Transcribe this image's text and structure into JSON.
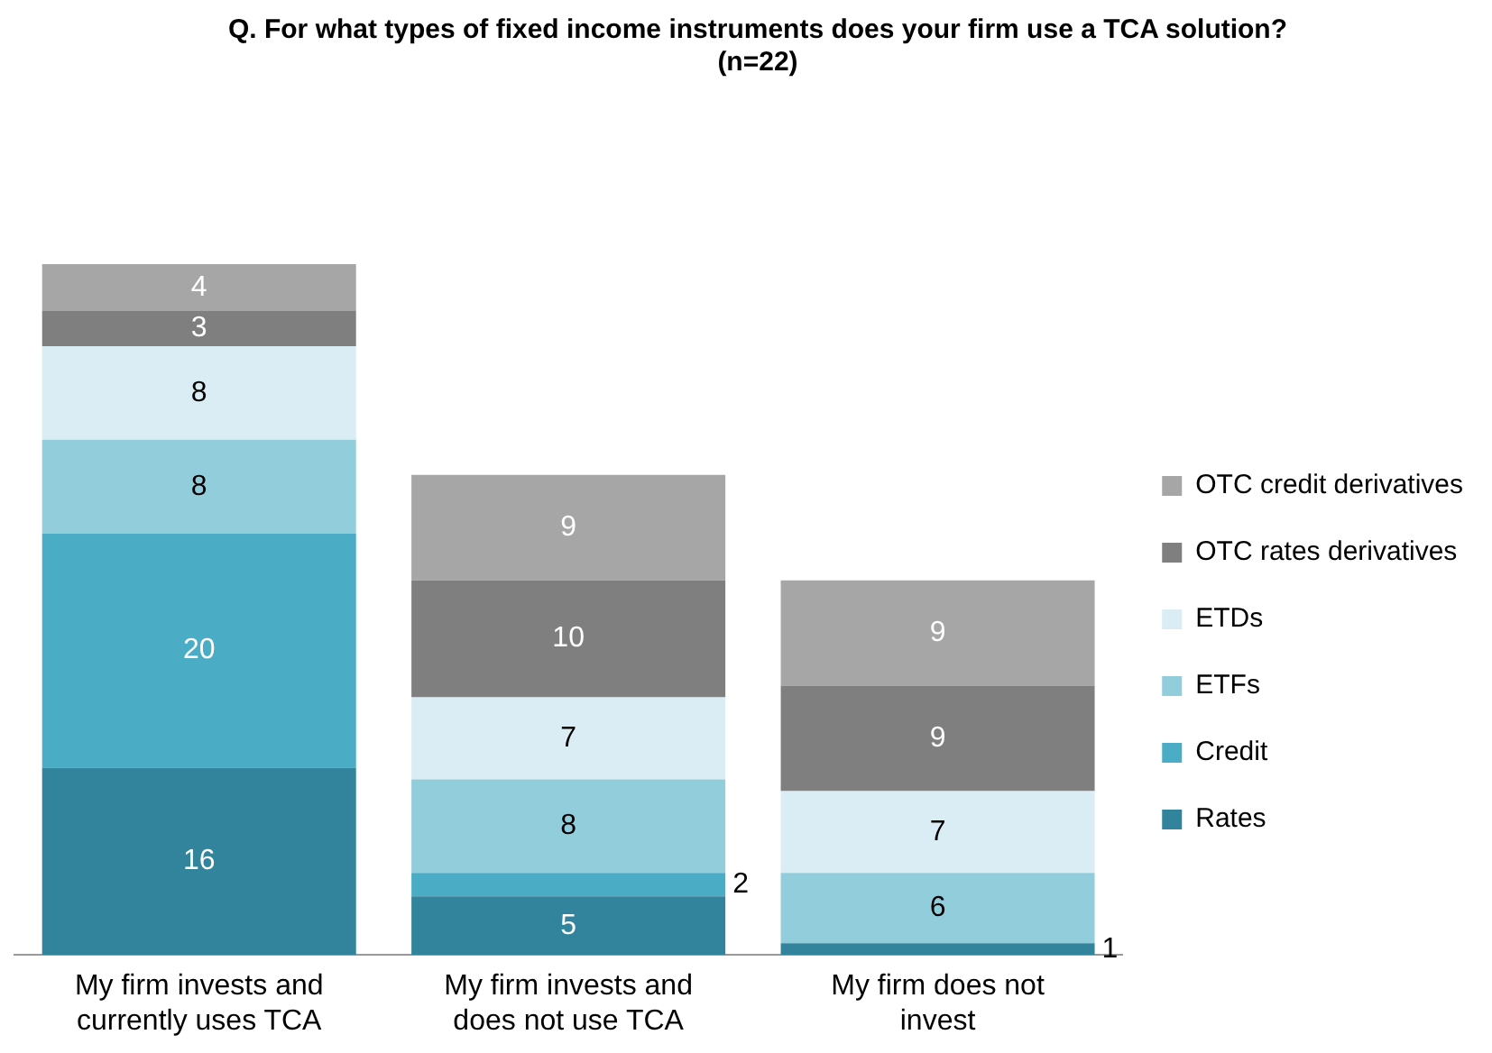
{
  "chart_data": {
    "type": "bar",
    "title": "Q. For what types of fixed income instruments does your firm use a TCA solution?\n(n=22)",
    "categories": [
      "My firm invests and currently uses TCA",
      "My firm invests and does not use TCA",
      "My firm does not invest"
    ],
    "stacked": true,
    "legend": "right",
    "grid": false,
    "series": [
      {
        "name": "Rates",
        "color": "#31849b",
        "values": [
          16,
          5,
          1
        ],
        "value_labels": [
          "16",
          "5",
          "1"
        ]
      },
      {
        "name": "Credit",
        "color": "#4bacc6",
        "values": [
          20,
          2,
          0
        ],
        "value_labels": [
          "20",
          "2",
          null
        ]
      },
      {
        "name": "ETFs",
        "color": "#92cddc",
        "values": [
          8,
          8,
          6
        ],
        "value_labels": [
          "8",
          "8",
          "6"
        ]
      },
      {
        "name": "ETDs",
        "color": "#daedf4",
        "values": [
          8,
          7,
          7
        ],
        "value_labels": [
          "8",
          "7",
          "7"
        ]
      },
      {
        "name": "OTC rates derivatives",
        "color": "#7f7f7f",
        "values": [
          3,
          10,
          9
        ],
        "value_labels": [
          "3",
          "10",
          "9"
        ]
      },
      {
        "name": "OTC credit derivatives",
        "color": "#a6a6a6",
        "values": [
          4,
          9,
          9
        ],
        "value_labels": [
          "4",
          "9",
          "9"
        ]
      }
    ]
  }
}
